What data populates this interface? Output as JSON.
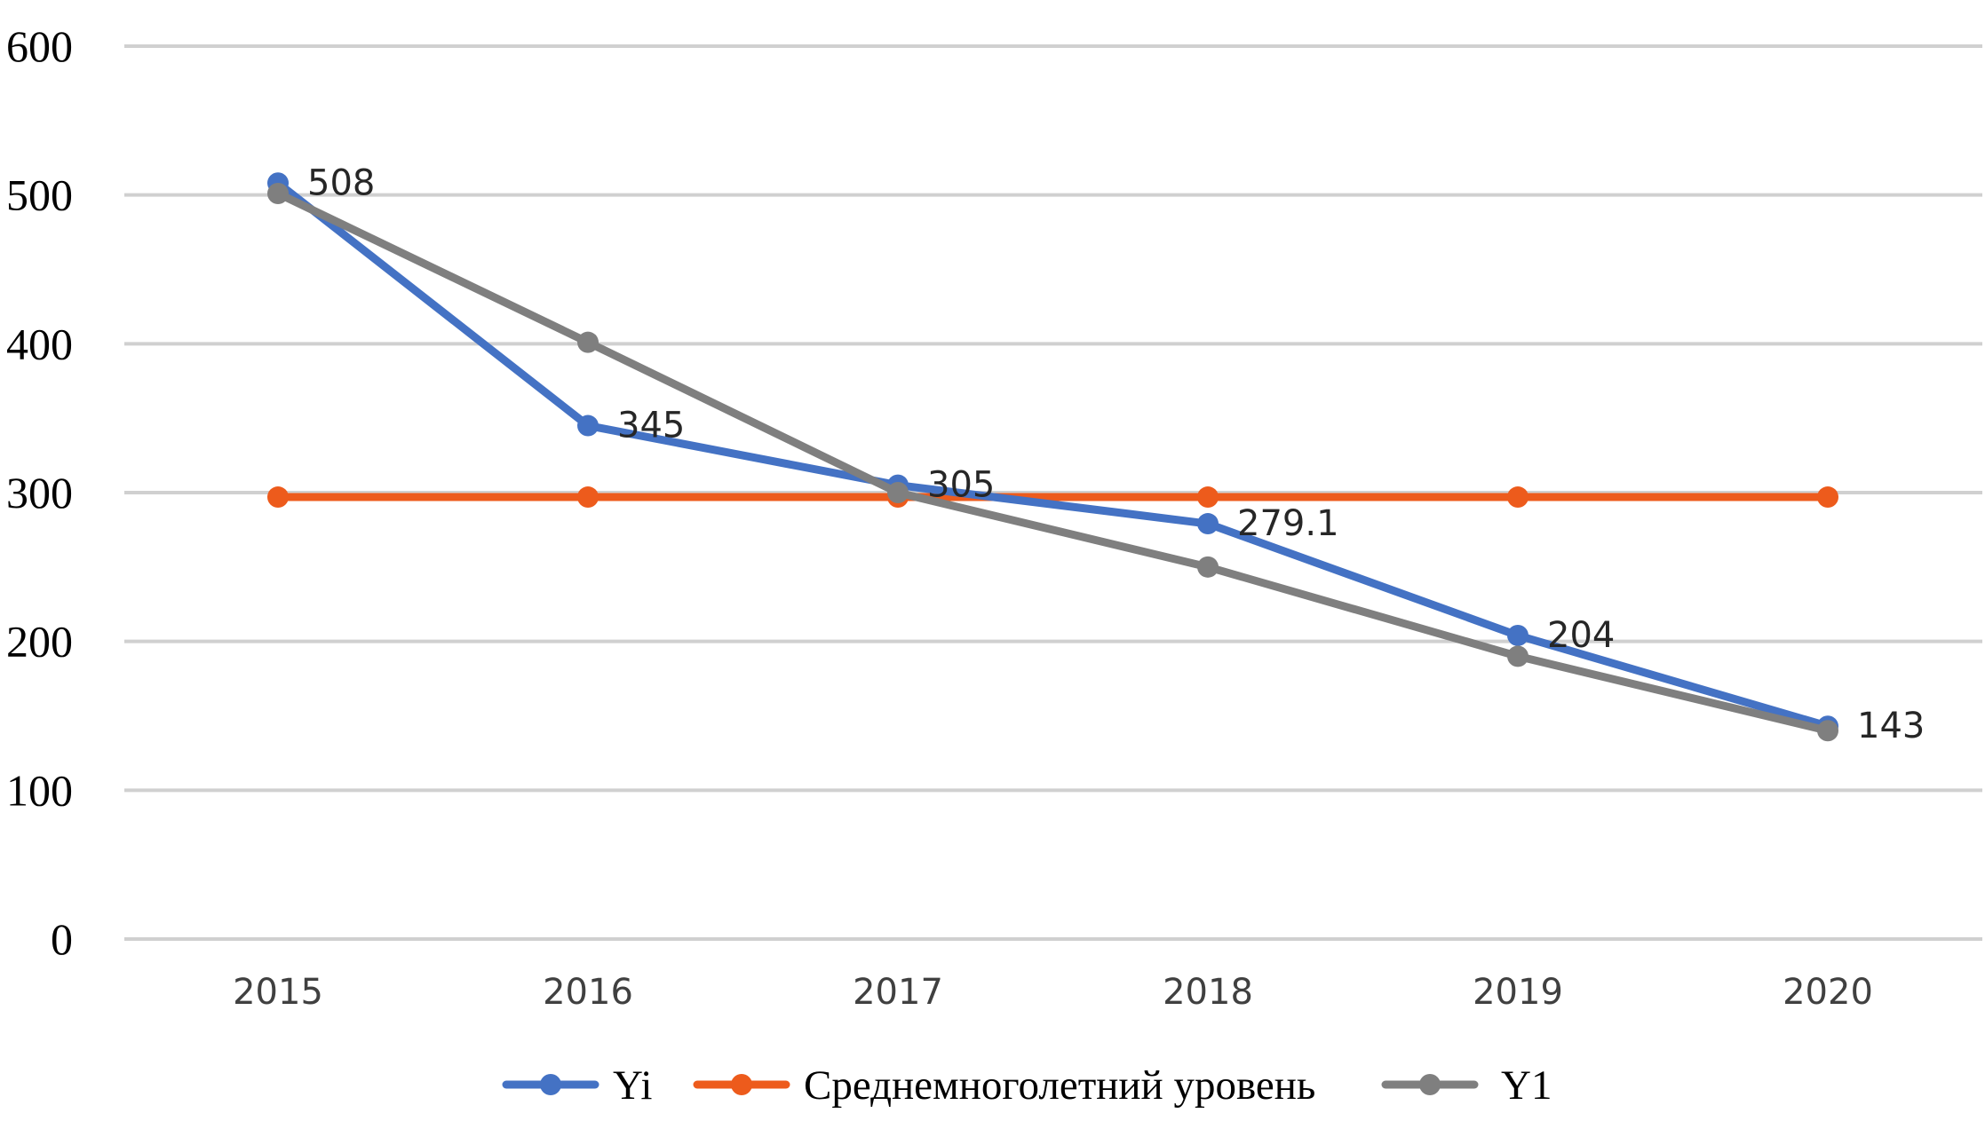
{
  "chart_data": {
    "type": "line",
    "categories": [
      "2015",
      "2016",
      "2017",
      "2018",
      "2019",
      "2020"
    ],
    "ylim": [
      0,
      600
    ],
    "yticks": [
      0,
      100,
      200,
      300,
      400,
      500,
      600
    ],
    "grid": true,
    "legend_position": "bottom",
    "series": [
      {
        "name": "Yi",
        "values": [
          508,
          345,
          305,
          279.1,
          204,
          143
        ],
        "data_labels": [
          "508",
          "345",
          "305",
          "279.1",
          "204",
          "143"
        ],
        "color": "#4472C4"
      },
      {
        "name": "Среднемноголетний уровень",
        "values": [
          297,
          297,
          297,
          297,
          297,
          297
        ],
        "color": "#ED5B1C"
      },
      {
        "name": "Y1",
        "values": [
          501,
          401,
          300,
          250,
          190,
          140
        ],
        "color": "#7F7F7F"
      }
    ]
  }
}
